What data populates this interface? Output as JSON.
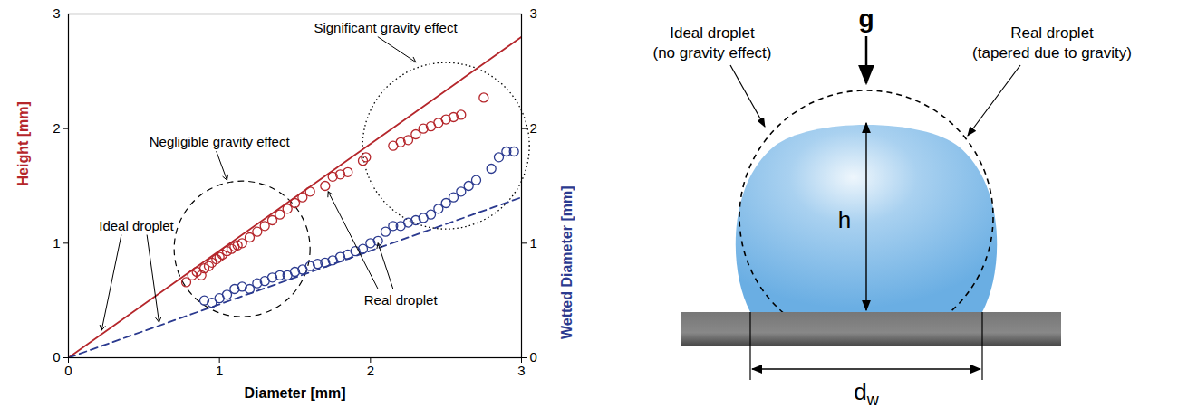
{
  "chart_data": {
    "type": "scatter",
    "xlabel": "Diameter [mm]",
    "ylabel": "Height [mm]",
    "y2label": "Wetted Diameter [mm]",
    "xlim": [
      0,
      3
    ],
    "ylim": [
      0,
      3
    ],
    "y2lim": [
      0,
      3
    ],
    "xticks": [
      0,
      1,
      2,
      3
    ],
    "yticks": [
      0,
      1,
      2,
      3
    ],
    "y2ticks": [
      0,
      1,
      2,
      3
    ],
    "annotations": [
      {
        "text": "Significant gravity effect"
      },
      {
        "text": "Negligible gravity effect"
      },
      {
        "text": "Ideal droplet"
      },
      {
        "text": "Real droplet"
      }
    ],
    "series": [
      {
        "type": "line",
        "color": "#b5262b",
        "line_style": "solid",
        "axis": "y",
        "x": [
          0,
          3
        ],
        "values": [
          0,
          2.8
        ]
      },
      {
        "type": "line",
        "color": "#2b3a8f",
        "line_style": "dashed",
        "axis": "y2",
        "x": [
          0,
          3
        ],
        "values": [
          0,
          1.4
        ]
      },
      {
        "type": "scatter",
        "color": "#b5262b",
        "marker": "circle",
        "axis": "y",
        "x": [
          0.78,
          0.82,
          0.85,
          0.88,
          0.9,
          0.93,
          0.95,
          0.98,
          1.0,
          1.02,
          1.05,
          1.08,
          1.1,
          1.12,
          1.15,
          1.2,
          1.25,
          1.3,
          1.35,
          1.4,
          1.45,
          1.5,
          1.55,
          1.6,
          1.7,
          1.75,
          1.8,
          1.85,
          1.95,
          1.97,
          2.15,
          2.2,
          2.25,
          2.3,
          2.35,
          2.4,
          2.45,
          2.5,
          2.55,
          2.6,
          2.75
        ],
        "values": [
          0.66,
          0.72,
          0.75,
          0.72,
          0.78,
          0.8,
          0.83,
          0.86,
          0.88,
          0.9,
          0.93,
          0.95,
          0.97,
          0.98,
          1.0,
          1.05,
          1.1,
          1.15,
          1.2,
          1.25,
          1.3,
          1.35,
          1.4,
          1.45,
          1.5,
          1.58,
          1.6,
          1.62,
          1.72,
          1.75,
          1.85,
          1.88,
          1.9,
          1.95,
          2.0,
          2.02,
          2.05,
          2.08,
          2.1,
          2.12,
          2.27
        ]
      },
      {
        "type": "scatter",
        "color": "#2b3a8f",
        "marker": "circle",
        "axis": "y2",
        "x": [
          0.9,
          0.95,
          1.0,
          1.05,
          1.1,
          1.15,
          1.2,
          1.25,
          1.3,
          1.35,
          1.4,
          1.45,
          1.5,
          1.55,
          1.6,
          1.65,
          1.7,
          1.75,
          1.8,
          1.85,
          1.9,
          1.95,
          2.0,
          2.05,
          2.1,
          2.15,
          2.2,
          2.25,
          2.3,
          2.35,
          2.4,
          2.45,
          2.5,
          2.55,
          2.6,
          2.65,
          2.7,
          2.8,
          2.85,
          2.9,
          2.95
        ],
        "values": [
          0.5,
          0.48,
          0.52,
          0.55,
          0.6,
          0.62,
          0.6,
          0.65,
          0.67,
          0.7,
          0.72,
          0.72,
          0.75,
          0.77,
          0.8,
          0.82,
          0.83,
          0.85,
          0.88,
          0.9,
          0.93,
          0.95,
          1.0,
          1.02,
          1.1,
          1.15,
          1.15,
          1.18,
          1.2,
          1.22,
          1.25,
          1.3,
          1.35,
          1.4,
          1.45,
          1.5,
          1.55,
          1.65,
          1.75,
          1.8,
          1.8
        ]
      }
    ]
  },
  "diagram": {
    "gravity_label": "g",
    "ideal_droplet": [
      "Ideal droplet",
      "(no gravity effect)"
    ],
    "real_droplet": [
      "Real droplet",
      "(tapered due to gravity)"
    ],
    "height_label": "h",
    "wetted_diameter_label": {
      "text": "d",
      "subscript": "w"
    }
  }
}
